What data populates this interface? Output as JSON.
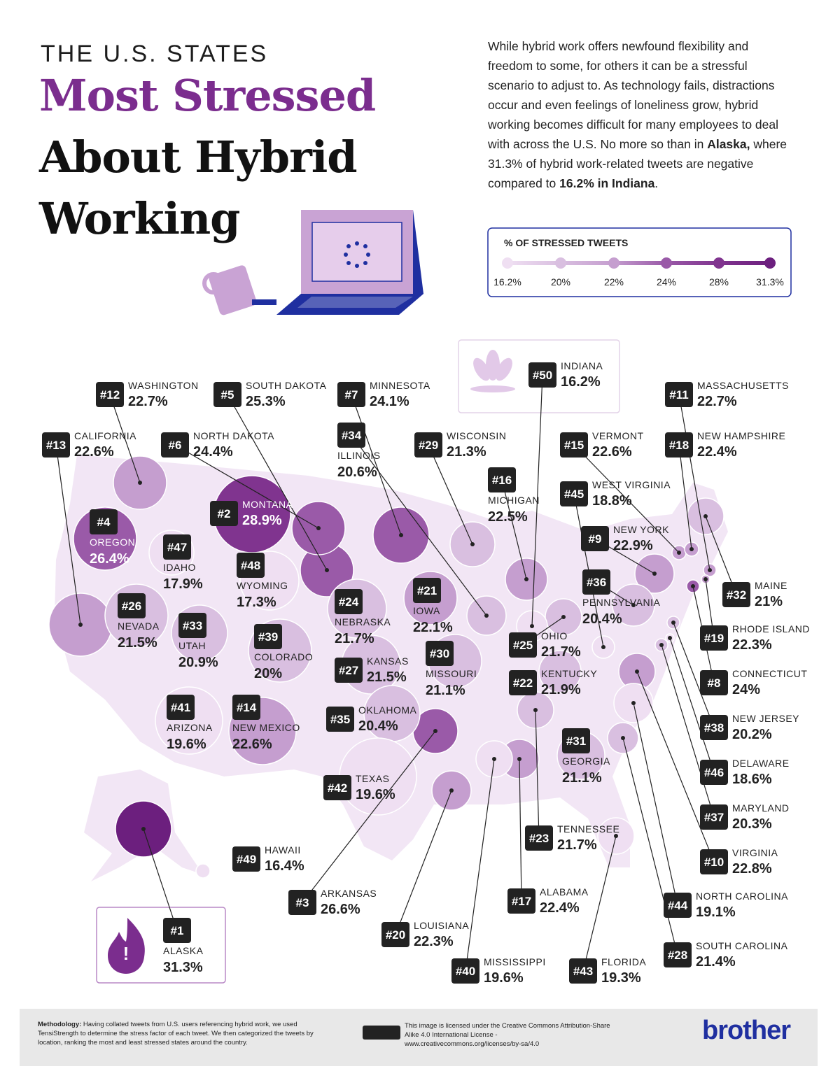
{
  "header": {
    "kicker": "THE U.S. STATES",
    "title_line1": "Most Stressed",
    "title_line2": "About Hybrid",
    "title_line3": "Working"
  },
  "intro": {
    "part1": "While hybrid work offers newfound flexibility and freedom to some, for others it can be a stressful scenario to adjust to. As technology fails, distractions occur and even feelings of loneliness grow, hybrid working becomes difficult for many employees to deal with across the U.S. No more so than in ",
    "bold1": "Alaska,",
    "part2": " where 31.3% of hybrid work-related tweets are negative compared to ",
    "bold2": "16.2% in Indiana",
    "part3": "."
  },
  "legend": {
    "title": "% OF STRESSED TWEETS",
    "stops": [
      {
        "label": "16.2%",
        "color": "#efdff2"
      },
      {
        "label": "20%",
        "color": "#d9bfe0"
      },
      {
        "label": "22%",
        "color": "#c59ecf"
      },
      {
        "label": "24%",
        "color": "#9a5aa8"
      },
      {
        "label": "28%",
        "color": "#80348f"
      },
      {
        "label": "31.3%",
        "color": "#6c1f7e"
      }
    ]
  },
  "states": [
    {
      "rank": "#1",
      "name": "ALASKA",
      "value": "31.3%"
    },
    {
      "rank": "#2",
      "name": "MONTANA",
      "value": "28.9%"
    },
    {
      "rank": "#3",
      "name": "ARKANSAS",
      "value": "26.6%"
    },
    {
      "rank": "#4",
      "name": "OREGON",
      "value": "26.4%"
    },
    {
      "rank": "#5",
      "name": "SOUTH DAKOTA",
      "value": "25.3%"
    },
    {
      "rank": "#6",
      "name": "NORTH DAKOTA",
      "value": "24.4%"
    },
    {
      "rank": "#7",
      "name": "MINNESOTA",
      "value": "24.1%"
    },
    {
      "rank": "#8",
      "name": "CONNECTICUT",
      "value": "24%"
    },
    {
      "rank": "#9",
      "name": "NEW YORK",
      "value": "22.9%"
    },
    {
      "rank": "#10",
      "name": "VIRGINIA",
      "value": "22.8%"
    },
    {
      "rank": "#11",
      "name": "MASSACHUSETTS",
      "value": "22.7%"
    },
    {
      "rank": "#12",
      "name": "WASHINGTON",
      "value": "22.7%"
    },
    {
      "rank": "#13",
      "name": "CALIFORNIA",
      "value": "22.6%"
    },
    {
      "rank": "#14",
      "name": "NEW MEXICO",
      "value": "22.6%"
    },
    {
      "rank": "#15",
      "name": "VERMONT",
      "value": "22.6%"
    },
    {
      "rank": "#16",
      "name": "MICHIGAN",
      "value": "22.5%"
    },
    {
      "rank": "#17",
      "name": "ALABAMA",
      "value": "22.4%"
    },
    {
      "rank": "#18",
      "name": "NEW HAMPSHIRE",
      "value": "22.4%"
    },
    {
      "rank": "#19",
      "name": "RHODE ISLAND",
      "value": "22.3%"
    },
    {
      "rank": "#20",
      "name": "LOUISIANA",
      "value": "22.3%"
    },
    {
      "rank": "#21",
      "name": "IOWA",
      "value": "22.1%"
    },
    {
      "rank": "#22",
      "name": "KENTUCKY",
      "value": "21.9%"
    },
    {
      "rank": "#23",
      "name": "TENNESSEE",
      "value": "21.7%"
    },
    {
      "rank": "#24",
      "name": "NEBRASKA",
      "value": "21.7%"
    },
    {
      "rank": "#25",
      "name": "OHIO",
      "value": "21.7%"
    },
    {
      "rank": "#26",
      "name": "NEVADA",
      "value": "21.5%"
    },
    {
      "rank": "#27",
      "name": "KANSAS",
      "value": "21.5%"
    },
    {
      "rank": "#28",
      "name": "SOUTH CAROLINA",
      "value": "21.4%"
    },
    {
      "rank": "#29",
      "name": "WISCONSIN",
      "value": "21.3%"
    },
    {
      "rank": "#30",
      "name": "MISSOURI",
      "value": "21.1%"
    },
    {
      "rank": "#31",
      "name": "GEORGIA",
      "value": "21.1%"
    },
    {
      "rank": "#32",
      "name": "MAINE",
      "value": "21%"
    },
    {
      "rank": "#33",
      "name": "UTAH",
      "value": "20.9%"
    },
    {
      "rank": "#34",
      "name": "ILLINOIS",
      "value": "20.6%"
    },
    {
      "rank": "#35",
      "name": "OKLAHOMA",
      "value": "20.4%"
    },
    {
      "rank": "#36",
      "name": "PENNSYLVANIA",
      "value": "20.4%"
    },
    {
      "rank": "#37",
      "name": "MARYLAND",
      "value": "20.3%"
    },
    {
      "rank": "#38",
      "name": "NEW JERSEY",
      "value": "20.2%"
    },
    {
      "rank": "#39",
      "name": "COLORADO",
      "value": "20%"
    },
    {
      "rank": "#40",
      "name": "MISSISSIPPI",
      "value": "19.6%"
    },
    {
      "rank": "#41",
      "name": "ARIZONA",
      "value": "19.6%"
    },
    {
      "rank": "#42",
      "name": "TEXAS",
      "value": "19.6%"
    },
    {
      "rank": "#43",
      "name": "FLORIDA",
      "value": "19.3%"
    },
    {
      "rank": "#44",
      "name": "NORTH CAROLINA",
      "value": "19.1%"
    },
    {
      "rank": "#45",
      "name": "WEST VIRGINIA",
      "value": "18.8%"
    },
    {
      "rank": "#46",
      "name": "DELAWARE",
      "value": "18.6%"
    },
    {
      "rank": "#47",
      "name": "IDAHO",
      "value": "17.9%"
    },
    {
      "rank": "#48",
      "name": "WYOMING",
      "value": "17.3%"
    },
    {
      "rank": "#49",
      "name": "HAWAII",
      "value": "16.4%"
    },
    {
      "rank": "#50",
      "name": "INDIANA",
      "value": "16.2%"
    }
  ],
  "footer": {
    "methodology_label": "Methodology:",
    "methodology": "Having collated tweets from U.S. users referencing hybrid work, we used TensiStrength to determine the stress factor of each tweet. We then categorized the tweets by location, ranking the most and least stressed states around the country.",
    "license": "This image is licensed under the Creative Commons Attribution-Share Alike 4.0 International License - www.creativecommons.org/licenses/by-sa/4.0",
    "brand": "brother"
  }
}
